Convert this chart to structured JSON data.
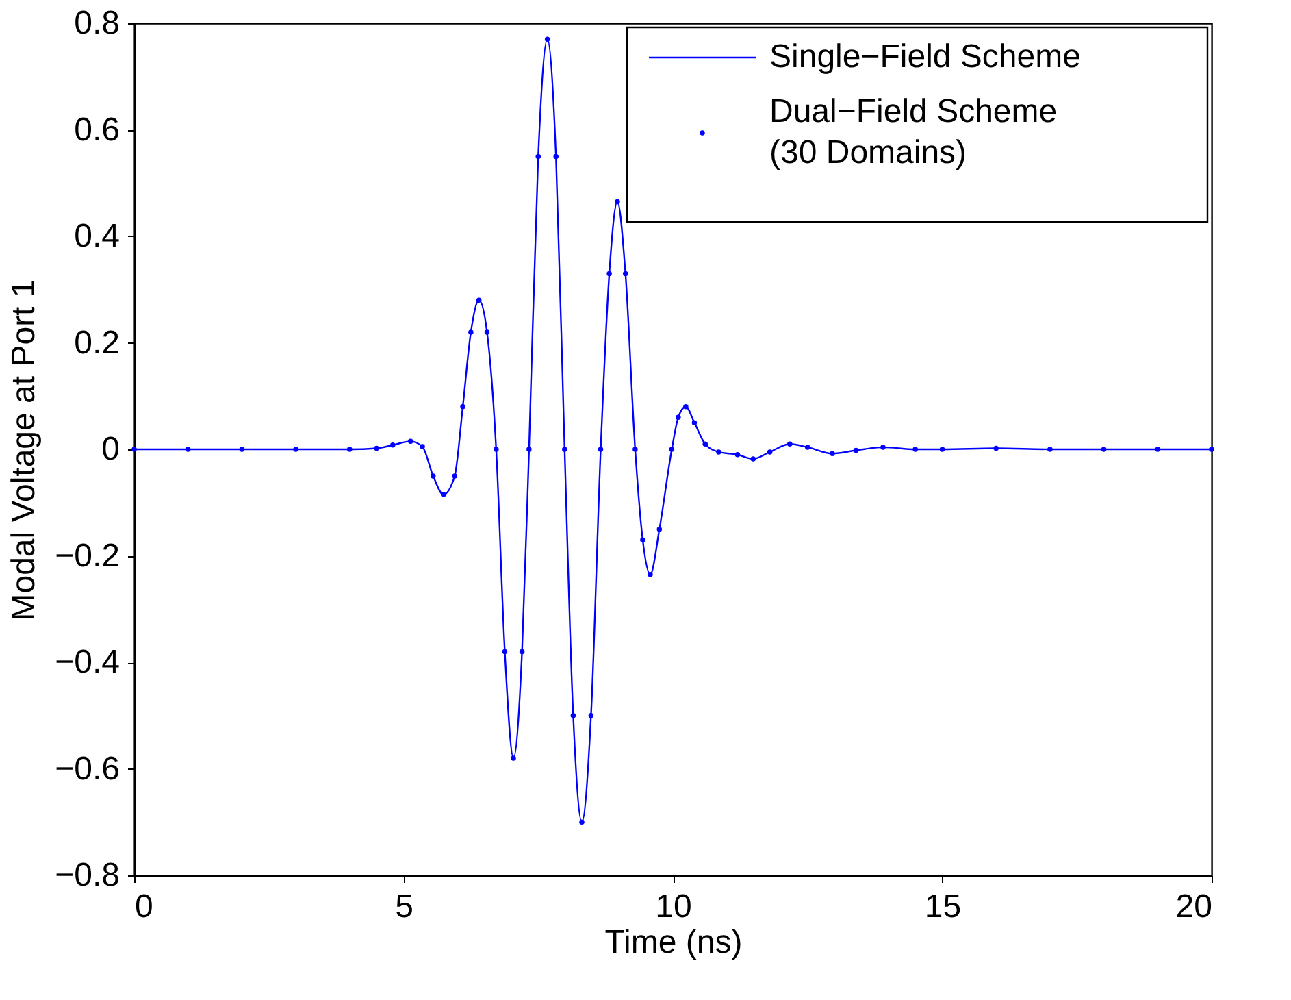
{
  "chart_data": {
    "type": "line",
    "xlabel": "Time (ns)",
    "ylabel": "Modal Voltage at Port 1",
    "x": [
      0,
      1,
      2,
      3,
      4,
      4.5,
      4.8,
      5.13,
      5.35,
      5.55,
      5.74,
      5.95,
      6.1,
      6.25,
      6.4,
      6.55,
      6.72,
      6.88,
      7.04,
      7.2,
      7.33,
      7.5,
      7.67,
      7.83,
      7.99,
      8.15,
      8.31,
      8.48,
      8.66,
      8.82,
      8.97,
      9.12,
      9.3,
      9.44,
      9.58,
      9.75,
      9.98,
      10.1,
      10.24,
      10.4,
      10.6,
      10.85,
      11.2,
      11.49,
      11.8,
      12.17,
      12.5,
      12.96,
      13.4,
      13.9,
      14.5,
      15,
      16,
      17,
      18,
      19,
      20
    ],
    "series": [
      {
        "name": "Single−Field Scheme",
        "color": "#0000ff",
        "marker": "none",
        "line_style": "solid",
        "values": [
          0,
          0,
          0,
          0,
          0,
          0.002,
          0.008,
          0.015,
          0.005,
          -0.05,
          -0.085,
          -0.05,
          0.08,
          0.22,
          0.28,
          0.22,
          0,
          -0.38,
          -0.58,
          -0.38,
          0,
          0.55,
          0.77,
          0.55,
          0,
          -0.5,
          -0.7,
          -0.5,
          0,
          0.33,
          0.465,
          0.33,
          0,
          -0.17,
          -0.235,
          -0.15,
          0,
          0.06,
          0.08,
          0.05,
          0.01,
          -0.005,
          -0.01,
          -0.018,
          -0.005,
          0.01,
          0.004,
          -0.008,
          -0.002,
          0.004,
          0,
          0,
          0.002,
          0,
          0,
          0,
          0
        ]
      },
      {
        "name": "Dual−Field Scheme\n(30 Domains)",
        "type": "scatter",
        "color": "#0000ff",
        "marker": "circle",
        "values": [
          0,
          0,
          0,
          0,
          0,
          0.002,
          0.008,
          0.015,
          0.005,
          -0.05,
          -0.085,
          -0.05,
          0.08,
          0.22,
          0.28,
          0.22,
          0,
          -0.38,
          -0.58,
          -0.38,
          0,
          0.55,
          0.77,
          0.55,
          0,
          -0.5,
          -0.7,
          -0.5,
          0,
          0.33,
          0.465,
          0.33,
          0,
          -0.17,
          -0.235,
          -0.15,
          0,
          0.06,
          0.08,
          0.05,
          0.01,
          -0.005,
          -0.01,
          -0.018,
          -0.005,
          0.01,
          0.004,
          -0.008,
          -0.002,
          0.004,
          0,
          0,
          0.002,
          0,
          0,
          0,
          0
        ]
      }
    ],
    "xlim": [
      0,
      20
    ],
    "xticks": [
      0,
      5,
      10,
      15,
      20
    ],
    "ylim": [
      -0.8,
      0.8
    ],
    "yticks": [
      -0.8,
      -0.6,
      -0.4,
      -0.2,
      0,
      0.2,
      0.4,
      0.6,
      0.8
    ],
    "grid": false,
    "legend": "top right"
  }
}
